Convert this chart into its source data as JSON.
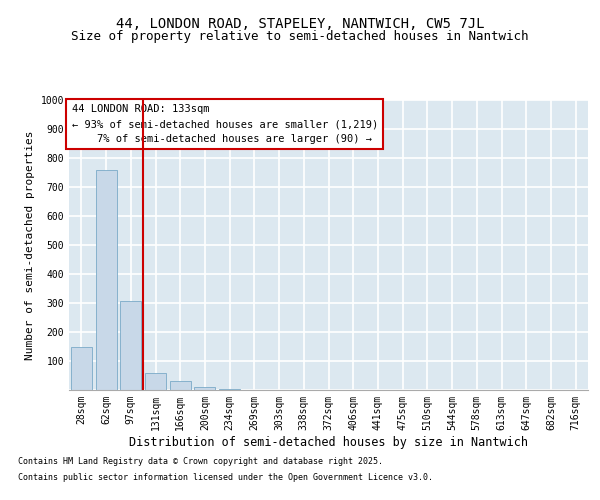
{
  "title1": "44, LONDON ROAD, STAPELEY, NANTWICH, CW5 7JL",
  "title2": "Size of property relative to semi-detached houses in Nantwich",
  "xlabel": "Distribution of semi-detached houses by size in Nantwich",
  "ylabel": "Number of semi-detached properties",
  "categories": [
    "28sqm",
    "62sqm",
    "97sqm",
    "131sqm",
    "166sqm",
    "200sqm",
    "234sqm",
    "269sqm",
    "303sqm",
    "338sqm",
    "372sqm",
    "406sqm",
    "441sqm",
    "475sqm",
    "510sqm",
    "544sqm",
    "578sqm",
    "613sqm",
    "647sqm",
    "682sqm",
    "716sqm"
  ],
  "values": [
    150,
    757,
    307,
    60,
    30,
    10,
    2,
    0,
    0,
    0,
    0,
    0,
    0,
    0,
    0,
    0,
    0,
    0,
    0,
    0,
    0
  ],
  "bar_color": "#c8d8e8",
  "bar_edge_color": "#7aaac8",
  "highlight_line_color": "#cc0000",
  "annotation_text": "44 LONDON ROAD: 133sqm\n← 93% of semi-detached houses are smaller (1,219)\n    7% of semi-detached houses are larger (90) →",
  "annotation_box_color": "#cc0000",
  "ylim": [
    0,
    1000
  ],
  "yticks": [
    0,
    100,
    200,
    300,
    400,
    500,
    600,
    700,
    800,
    900,
    1000
  ],
  "footnote1": "Contains HM Land Registry data © Crown copyright and database right 2025.",
  "footnote2": "Contains public sector information licensed under the Open Government Licence v3.0.",
  "background_color": "#dce8f0",
  "grid_color": "#ffffff",
  "title1_fontsize": 10,
  "title2_fontsize": 9,
  "xlabel_fontsize": 8.5,
  "ylabel_fontsize": 8,
  "tick_fontsize": 7,
  "annotation_fontsize": 7.5,
  "footnote_fontsize": 6
}
